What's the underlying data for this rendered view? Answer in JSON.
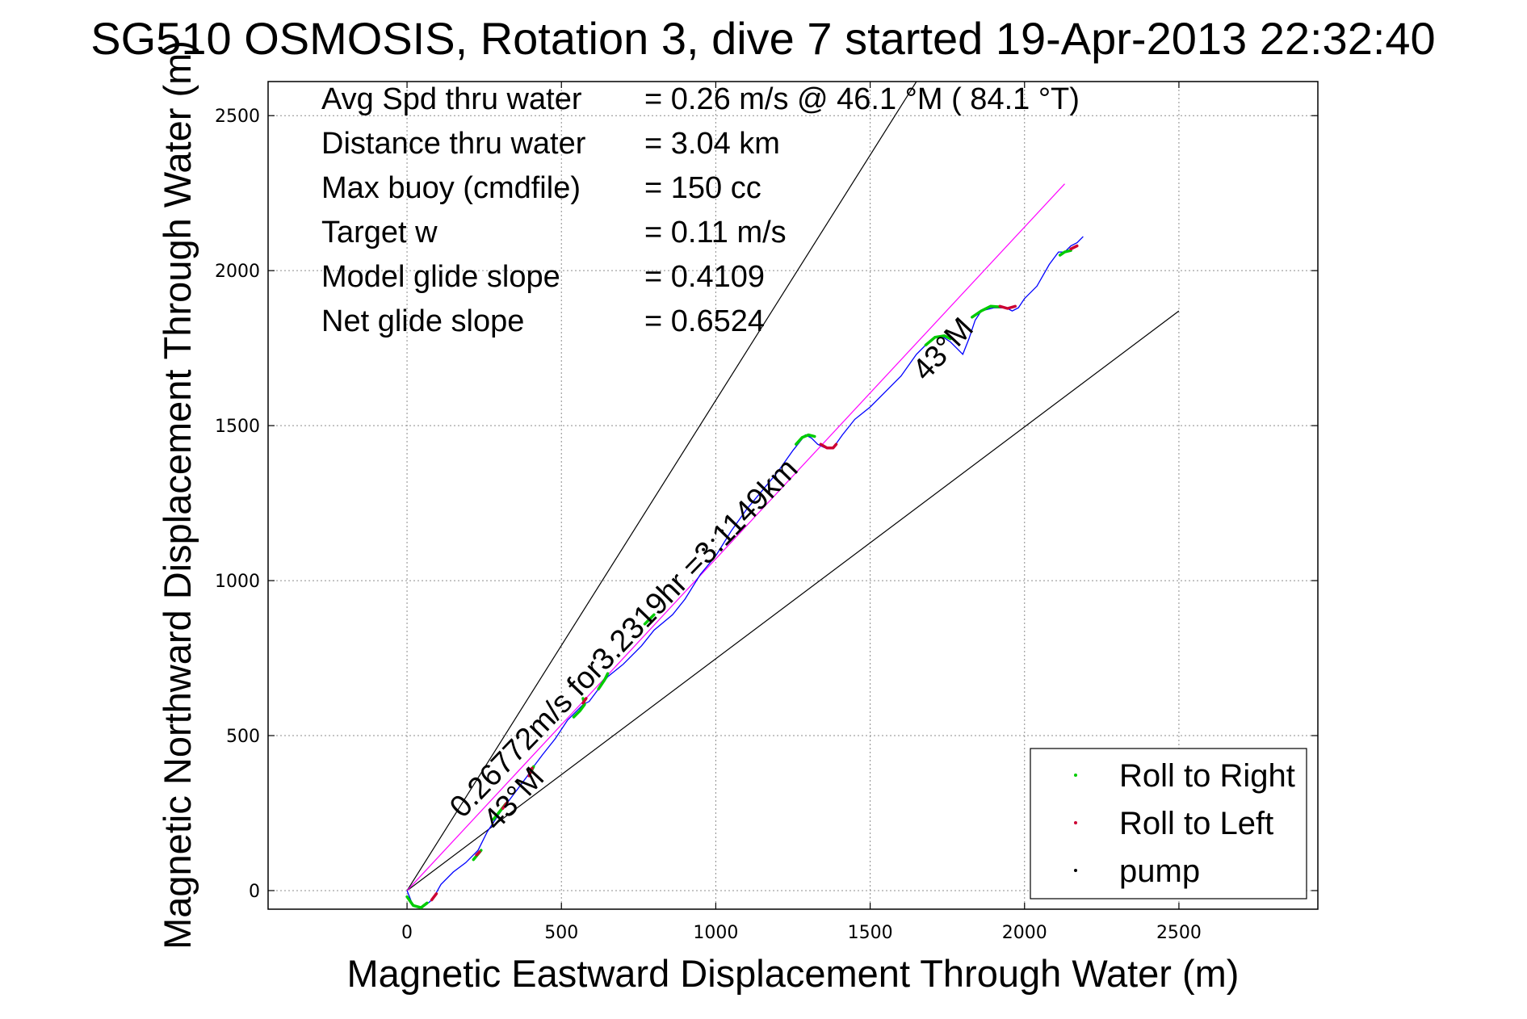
{
  "chart_data": {
    "type": "line",
    "title": "SG510 OSMOSIS, Rotation 3, dive 7 started 19-Apr-2013 22:32:40",
    "xlabel": "Magnetic Eastward Displacement Through Water (m)",
    "ylabel": "Magnetic Northward Displacement Through Water (m)",
    "xlim": [
      -450,
      2950
    ],
    "ylim": [
      -60,
      2610
    ],
    "xticks": [
      0,
      500,
      1000,
      1500,
      2000,
      2500
    ],
    "yticks": [
      0,
      500,
      1000,
      1500,
      2000,
      2500
    ],
    "grid": true,
    "legend_position": "bottom-right",
    "stats": [
      {
        "label": "Avg Spd thru water",
        "value": "=  0.26 m/s @  46.1 °M ( 84.1 °T)"
      },
      {
        "label": "Distance thru water",
        "value": "=  3.04 km"
      },
      {
        "label": "Max buoy (cmdfile)",
        "value": "= 150 cc"
      },
      {
        "label": "Target w",
        "value": "= 0.11 m/s"
      },
      {
        "label": "Model glide slope",
        "value": "= 0.4109"
      },
      {
        "label": "Net glide slope",
        "value": "= 0.6524"
      }
    ],
    "annotations": [
      {
        "text": "0.26772m/s for3.2319hr =3.1149km",
        "x": 180,
        "y": 230,
        "angle_deg": 46
      },
      {
        "text": "43°M",
        "x": 290,
        "y": 190,
        "angle_deg": 47
      },
      {
        "text": "43°M",
        "x": 1680,
        "y": 1640,
        "angle_deg": 47
      }
    ],
    "reference_lines": [
      {
        "color": "#000000",
        "x": [
          0,
          1650
        ],
        "y": [
          0,
          2610
        ]
      },
      {
        "color": "#000000",
        "x": [
          0,
          2500
        ],
        "y": [
          0,
          1870
        ]
      },
      {
        "color": "#ff00ff",
        "x": [
          0,
          2130
        ],
        "y": [
          0,
          2280
        ]
      }
    ],
    "series": [
      {
        "name": "track",
        "color": "#0000ff",
        "x": [
          0,
          20,
          50,
          75,
          90,
          110,
          150,
          190,
          210,
          230,
          260,
          300,
          330,
          360,
          390,
          410,
          440,
          480,
          520,
          550,
          570,
          590,
          620,
          650,
          700,
          760,
          800,
          860,
          900,
          950,
          1000,
          1050,
          1100,
          1150,
          1200,
          1250,
          1290,
          1310,
          1330,
          1350,
          1370,
          1385,
          1410,
          1450,
          1500,
          1550,
          1600,
          1650,
          1700,
          1730,
          1760,
          1780,
          1800,
          1820,
          1840,
          1860,
          1900,
          1940,
          1960,
          1980,
          2000,
          2040,
          2080,
          2110,
          2130,
          2150,
          2170,
          2190
        ],
        "y": [
          0,
          -50,
          -55,
          -35,
          -15,
          20,
          60,
          90,
          110,
          130,
          190,
          250,
          290,
          330,
          370,
          400,
          440,
          490,
          550,
          580,
          600,
          610,
          650,
          690,
          730,
          790,
          840,
          890,
          940,
          1020,
          1080,
          1160,
          1230,
          1290,
          1350,
          1420,
          1470,
          1460,
          1440,
          1430,
          1425,
          1435,
          1470,
          1520,
          1560,
          1610,
          1660,
          1730,
          1780,
          1790,
          1770,
          1750,
          1730,
          1780,
          1840,
          1870,
          1880,
          1880,
          1870,
          1880,
          1910,
          1950,
          2020,
          2060,
          2060,
          2080,
          2090,
          2110
        ]
      },
      {
        "name": "Roll to Right",
        "color": "#00cc00",
        "segments": [
          {
            "x": [
              0,
              20,
              45,
              65
            ],
            "y": [
              -20,
              -48,
              -55,
              -40
            ]
          },
          {
            "x": [
              215,
              240
            ],
            "y": [
              100,
              130
            ]
          },
          {
            "x": [
              280,
              300,
              320
            ],
            "y": [
              230,
              255,
              280
            ]
          },
          {
            "x": [
              400,
              410
            ],
            "y": [
              380,
              400
            ]
          },
          {
            "x": [
              540,
              560,
              575,
              570
            ],
            "y": [
              560,
              580,
              600,
              620
            ]
          },
          {
            "x": [
              620,
              640,
              650
            ],
            "y": [
              650,
              680,
              700
            ]
          },
          {
            "x": [
              770,
              790,
              800
            ],
            "y": [
              860,
              880,
              890
            ]
          },
          {
            "x": [
              1260,
              1280,
              1300,
              1320
            ],
            "y": [
              1440,
              1462,
              1470,
              1465
            ]
          },
          {
            "x": [
              1680,
              1710,
              1740,
              1760
            ],
            "y": [
              1760,
              1785,
              1790,
              1780
            ]
          },
          {
            "x": [
              1830,
              1860,
              1890,
              1920
            ],
            "y": [
              1850,
              1870,
              1885,
              1883
            ]
          },
          {
            "x": [
              2115,
              2130,
              2150
            ],
            "y": [
              2050,
              2060,
              2065
            ]
          }
        ]
      },
      {
        "name": "Roll to Left",
        "color": "#cc0033",
        "segments": [
          {
            "x": [
              80,
              95
            ],
            "y": [
              -30,
              -10
            ]
          },
          {
            "x": [
              225,
              235
            ],
            "y": [
              115,
              125
            ]
          },
          {
            "x": [
              310,
              325
            ],
            "y": [
              265,
              285
            ]
          },
          {
            "x": [
              395,
              405
            ],
            "y": [
              370,
              395
            ]
          },
          {
            "x": [
              570,
              580
            ],
            "y": [
              605,
              620
            ]
          },
          {
            "x": [
              1340,
              1360,
              1380,
              1390
            ],
            "y": [
              1440,
              1428,
              1428,
              1440
            ]
          },
          {
            "x": [
              1920,
              1945,
              1970
            ],
            "y": [
              1885,
              1878,
              1885
            ]
          },
          {
            "x": [
              2150,
              2170
            ],
            "y": [
              2070,
              2080
            ]
          }
        ]
      },
      {
        "name": "pump",
        "color": "#000000",
        "points": {
          "x": [
            960,
            990,
            1020
          ],
          "y": [
            1100,
            1130,
            1160
          ]
        }
      }
    ],
    "legend": [
      "Roll to Right",
      "Roll to Left",
      "pump"
    ]
  }
}
